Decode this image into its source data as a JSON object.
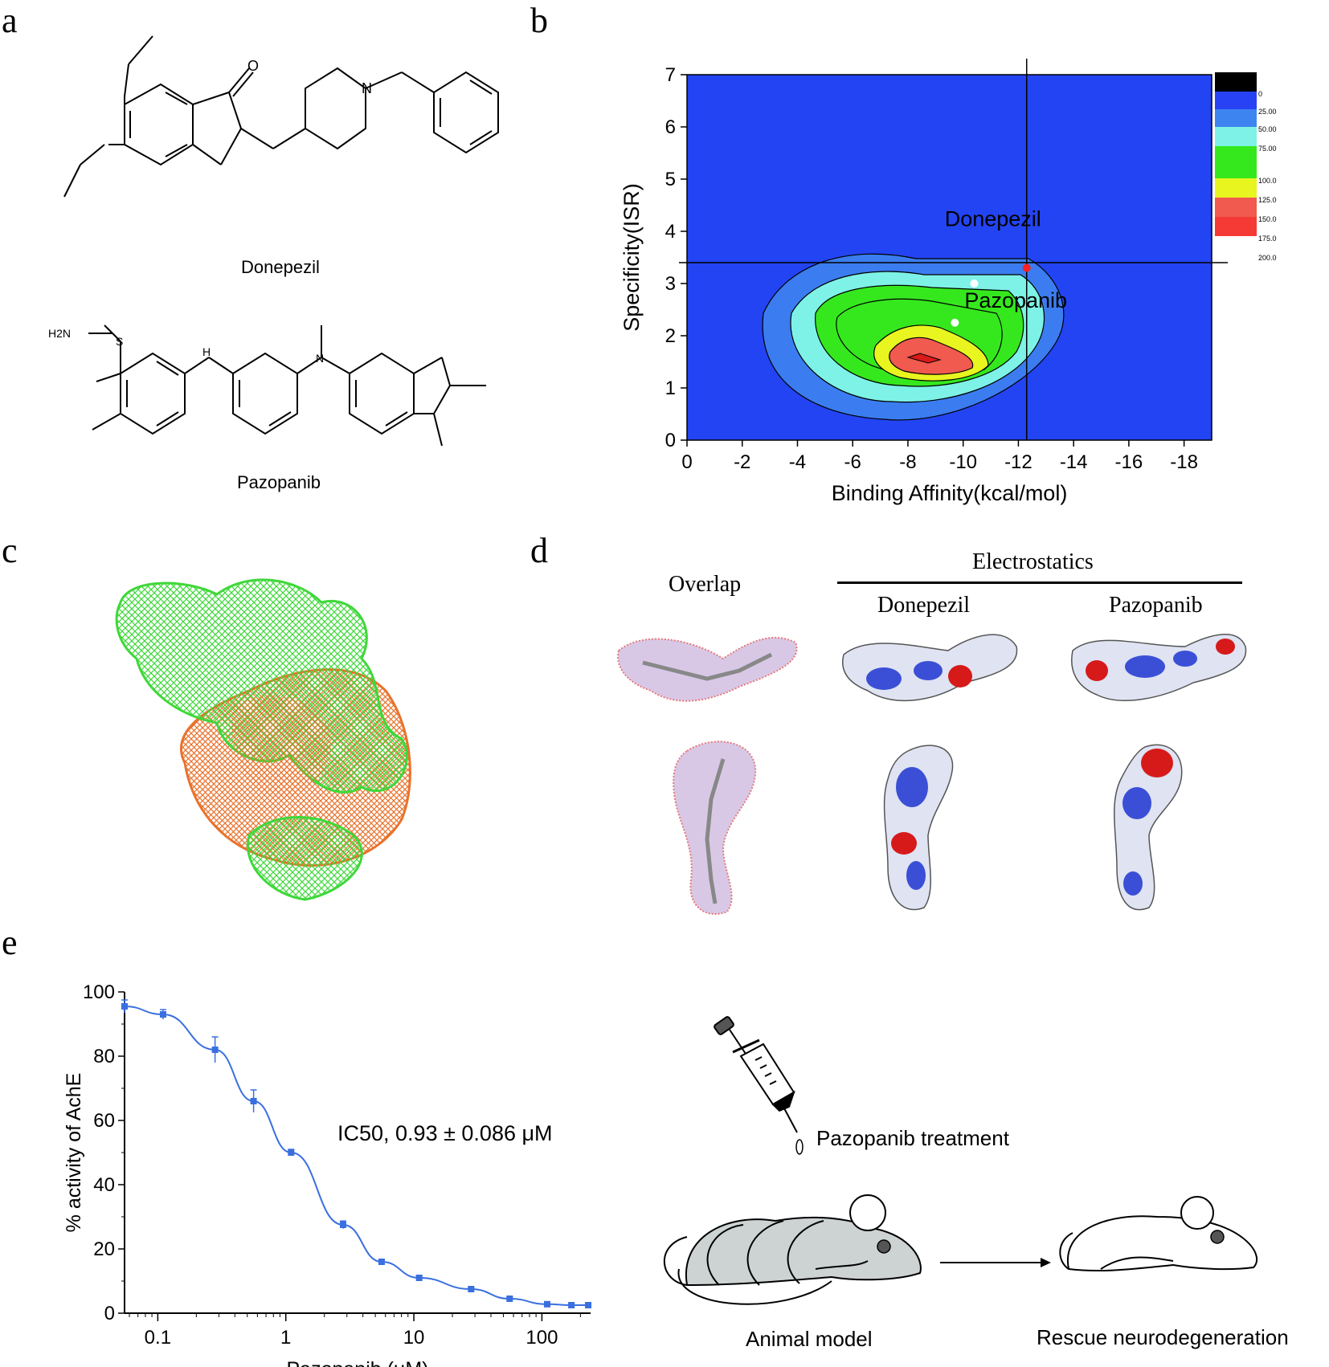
{
  "panels": {
    "a": "a",
    "b": "b",
    "c": "c",
    "d": "d",
    "e": "e"
  },
  "panel_a": {
    "molecule1": "Donepezil",
    "molecule2": "Pazopanib",
    "atoms": {
      "O": "O",
      "N": "N",
      "H2N": "H2N",
      "S": "S",
      "H": "H"
    }
  },
  "panel_d": {
    "overlap": "Overlap",
    "electrostatics": "Electrostatics",
    "col1": "Donepezil",
    "col2": "Pazopanib"
  },
  "panel_e_right": {
    "treatment": "Pazopanib treatment",
    "animal_model": "Animal model",
    "rescue": "Rescue neurodegeneration"
  },
  "chart_data": [
    {
      "type": "heatmap",
      "xlabel": "Binding Affinity(kcal/mol)",
      "ylabel": "Specificity(ISR)",
      "xticks": [
        "0",
        "-2",
        "-4",
        "-6",
        "-8",
        "-10",
        "-12",
        "-14",
        "-16",
        "-18"
      ],
      "yticks": [
        "0",
        "1",
        "2",
        "3",
        "4",
        "5",
        "6",
        "7"
      ],
      "xlim": [
        0,
        -19
      ],
      "ylim": [
        0,
        7
      ],
      "legend_levels": [
        "0",
        "25.00",
        "50.00",
        "75.00",
        "100.0",
        "125.0",
        "150.0",
        "175.0",
        "200.0"
      ],
      "legend_colors": [
        "#000000",
        "#2742f5",
        "#3d84f0",
        "#7ef2e6",
        "#35e81d",
        "#e8f51f",
        "#f05a4f",
        "#f53a35"
      ],
      "points": [
        {
          "label": "Donepezil",
          "x": -12.3,
          "y": 3.3,
          "color": "#ff2020"
        },
        {
          "label": "Pazopanib",
          "x": -10.4,
          "y": 3.0,
          "color": "#ffffff"
        },
        {
          "label": "",
          "x": -9.7,
          "y": 2.25,
          "color": "#ffffff"
        }
      ],
      "crosshair": {
        "x": -12.3,
        "y": 3.4
      }
    },
    {
      "type": "line",
      "xlabel": "Pazopanib (μM)",
      "ylabel": "% activity of AchE",
      "xscale": "log",
      "xticks": [
        "0.1",
        "1",
        "10",
        "100"
      ],
      "yticks": [
        "0",
        "20",
        "40",
        "60",
        "80",
        "100"
      ],
      "ylim": [
        0,
        100
      ],
      "annotation": "IC50, 0.93 ± 0.086 μM",
      "series": [
        {
          "x": [
            0.055,
            0.11,
            0.28,
            0.56,
            1.1,
            2.8,
            5.6,
            11,
            28,
            56,
            110,
            170,
            230
          ],
          "y": [
            95.5,
            93,
            82,
            66,
            50,
            27.5,
            16,
            11,
            7.5,
            4.5,
            2.8,
            2.5,
            2.5
          ],
          "err": [
            2,
            1.5,
            4,
            3.5,
            1,
            1.2,
            0.5,
            0.5,
            0.5,
            0.5,
            0.5,
            0.5,
            0.5
          ]
        }
      ]
    }
  ]
}
